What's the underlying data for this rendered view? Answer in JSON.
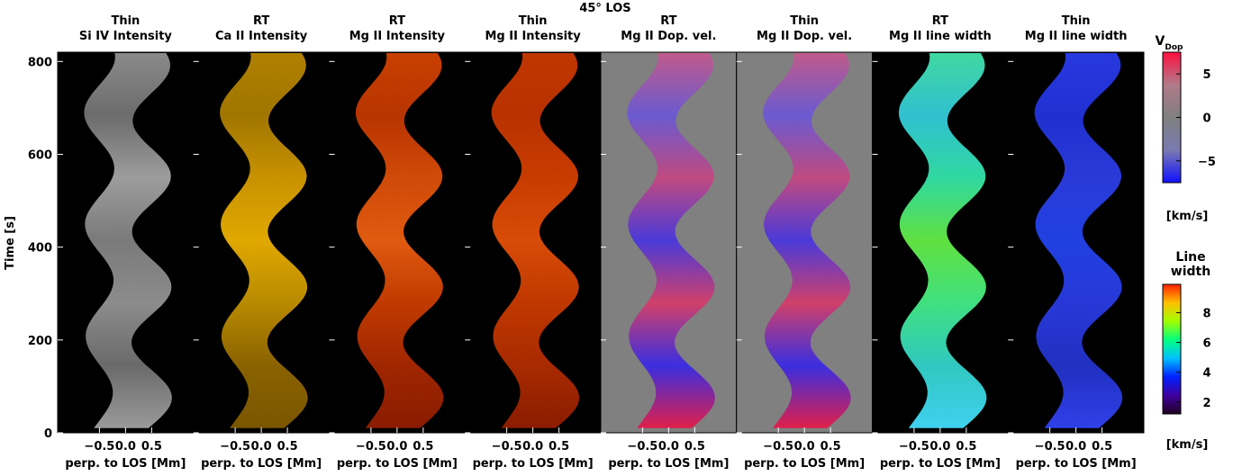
{
  "chart_data": {
    "type": "heatmap",
    "title": "45° LOS",
    "ylabel": "Time [s]",
    "ylim": [
      0,
      820
    ],
    "yticks": [
      0,
      200,
      400,
      600,
      800
    ],
    "xlim": [
      -1.3,
      1.3
    ],
    "xticks": [
      -0.5,
      {
        "value": 0,
        "label": "0.0"
      },
      0.5
    ],
    "panels": [
      {
        "title": [
          "Thin",
          "Si IV Intensity"
        ],
        "xlabel": "perp. to LOS [Mm]",
        "background": "#000000",
        "colors": [
          "#9a9a9a",
          "#6a6a6a",
          "#8c8c8c",
          "#7a7a7a",
          "#9c9c9c",
          "#6c6c6c",
          "#8a8a8a"
        ]
      },
      {
        "title": [
          "RT",
          "Ca II Intensity"
        ],
        "xlabel": "perp. to LOS [Mm]",
        "background": "#000000",
        "colors": [
          "#7a5600",
          "#8a6200",
          "#b88a00",
          "#e0a800",
          "#c89200",
          "#a07600",
          "#b08000"
        ]
      },
      {
        "title": [
          "RT",
          "Mg II Intensity"
        ],
        "xlabel": "perp. to LOS [Mm]",
        "background": "#000000",
        "colors": [
          "#8a1c00",
          "#a02600",
          "#c03a00",
          "#e05a10",
          "#d04a08",
          "#b83400",
          "#c84000"
        ]
      },
      {
        "title": [
          "Thin",
          "Mg II Intensity"
        ],
        "xlabel": "perp. to LOS [Mm]",
        "background": "#000000",
        "colors": [
          "#8a1c00",
          "#a82a00",
          "#c03800",
          "#d84c08",
          "#c83c00",
          "#b83200",
          "#c03600"
        ]
      },
      {
        "title": [
          "RT",
          "Mg II Dop. vel."
        ],
        "xlabel": "perp. to LOS [Mm]",
        "background": "#808080",
        "colors": [
          "#e0204a",
          "#3a2ee0",
          "#d0406a",
          "#4a3ad8",
          "#c04a80",
          "#6a5ad0",
          "#c05a8a"
        ]
      },
      {
        "title": [
          "Thin",
          "Mg II Dop. vel."
        ],
        "xlabel": "perp. to LOS [Mm]",
        "background": "#808080",
        "colors": [
          "#e0204a",
          "#3a2ee0",
          "#d0406a",
          "#4a3ad8",
          "#c04a80",
          "#6a5ad0",
          "#c05a8a"
        ]
      },
      {
        "title": [
          "RT",
          "Mg II line width"
        ],
        "xlabel": "perp. to LOS [Mm]",
        "background": "#000000",
        "colors": [
          "#40d0f0",
          "#30c8c0",
          "#40e080",
          "#60e040",
          "#30d8a0",
          "#30c0d0",
          "#40d8a0"
        ]
      },
      {
        "title": [
          "Thin",
          "Mg II line width"
        ],
        "xlabel": "perp. to LOS [Mm]",
        "background": "#000000",
        "colors": [
          "#3040e8",
          "#2030c0",
          "#2838d8",
          "#2040e0",
          "#2a3ad8",
          "#2030d0",
          "#2838e0"
        ]
      }
    ],
    "colorbars": [
      {
        "title": "V",
        "subscript": "Dop",
        "unit": "[km/s]",
        "lim": [
          -7.5,
          7.5
        ],
        "ticks": [
          5,
          0,
          -5
        ],
        "colors": [
          "#1010ff",
          "#7a7ab0",
          "#808080",
          "#b07a8a",
          "#ff1040"
        ]
      },
      {
        "title_lines": [
          "Line",
          "width"
        ],
        "unit": "[km/s]",
        "lim": [
          1.2,
          9.9
        ],
        "ticks": [
          2,
          4,
          6,
          8
        ],
        "colors": [
          "#200020",
          "#4000a0",
          "#0020ff",
          "#00c0ff",
          "#00ff80",
          "#a0ff00",
          "#ffc000",
          "#ff2000"
        ]
      }
    ]
  }
}
